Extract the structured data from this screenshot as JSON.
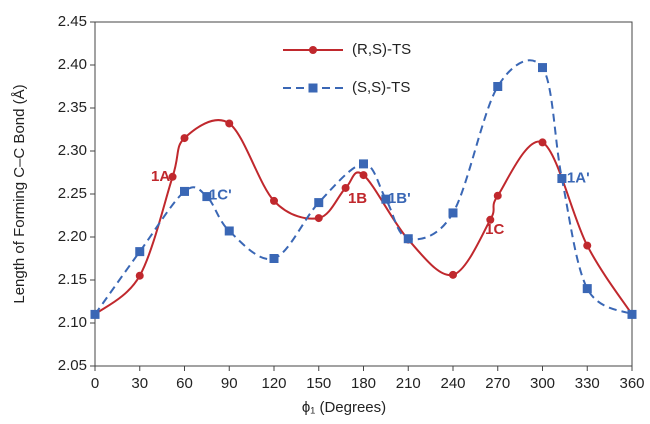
{
  "chart_data": {
    "type": "line",
    "x_label": "ϕ₁ (Degrees)",
    "y_label": "Length of Forming C–C Bond (Å)",
    "xlim": [
      0,
      360
    ],
    "xticks": [
      0,
      30,
      60,
      90,
      120,
      150,
      180,
      210,
      240,
      270,
      300,
      330,
      360
    ],
    "ylim": [
      2.05,
      2.45
    ],
    "yticks": [
      2.05,
      {
        "value": 2.1,
        "label": "2.10"
      },
      2.15,
      {
        "value": 2.2,
        "label": "2.20"
      },
      2.25,
      {
        "value": 2.3,
        "label": "2.30"
      },
      2.35,
      {
        "value": 2.4,
        "label": "2.40"
      },
      2.45
    ],
    "grid": false,
    "series": [
      {
        "name": "(R,S)-TS",
        "color": "#c0282d",
        "marker": "circle",
        "dash": "solid",
        "x": [
          0,
          30,
          52,
          60,
          90,
          120,
          150,
          168,
          180,
          210,
          240,
          265,
          270,
          300,
          330,
          360
        ],
        "values": [
          2.11,
          2.155,
          2.27,
          2.315,
          2.332,
          2.242,
          2.222,
          2.257,
          2.272,
          2.197,
          2.156,
          2.22,
          2.248,
          2.31,
          2.19,
          2.11
        ]
      },
      {
        "name": "(S,S)-TS",
        "color": "#3a67b5",
        "marker": "square",
        "dash": "dashed",
        "x": [
          0,
          30,
          60,
          75,
          90,
          120,
          150,
          180,
          195,
          210,
          240,
          270,
          300,
          313,
          330,
          360
        ],
        "values": [
          2.11,
          2.183,
          2.253,
          2.247,
          2.207,
          2.175,
          2.24,
          2.285,
          2.244,
          2.198,
          2.228,
          2.375,
          2.397,
          2.268,
          2.14,
          2.11
        ]
      }
    ],
    "annotations": [
      {
        "text": "1A",
        "color": "#c0282d"
      },
      {
        "text": "1C'",
        "color": "#3a67b5"
      },
      {
        "text": "1B",
        "color": "#c0282d"
      },
      {
        "text": "1B'",
        "color": "#3a67b5"
      },
      {
        "text": "1C",
        "color": "#c0282d"
      },
      {
        "text": "1A'",
        "color": "#3a67b5"
      }
    ]
  }
}
